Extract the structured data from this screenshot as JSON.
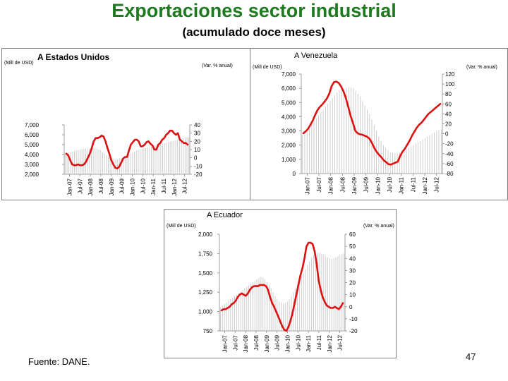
{
  "header": {
    "title": "Exportaciones sector industrial",
    "subtitle": "(acumulado doce meses)"
  },
  "footer": {
    "source": "Fuente: DANE.",
    "page_number": "47"
  },
  "colors": {
    "title": "#1e7a1e",
    "line": "#dd1111",
    "bars": "#c8c8c8",
    "axis": "#888888"
  },
  "chart_data": [
    {
      "id": "usa",
      "type": "line",
      "title": "A Estados Unidos",
      "left_unit": "(Mill de USD)",
      "right_unit": "(Var. % anual)",
      "x_ticks": [
        "Jan-07",
        "Jul-07",
        "Jan-08",
        "Jul-08",
        "Jan-09",
        "Jul-09",
        "Jan-10",
        "Jul-10",
        "Jan-11",
        "Jul-11",
        "Jan-12",
        "Jul-12"
      ],
      "left_axis": {
        "min": 2000,
        "max": 7000,
        "ticks": [
          {
            "v": 7000,
            "l": "7,000"
          },
          {
            "v": 6000,
            "l": "6,000"
          },
          {
            "v": 5000,
            "l": "5,000"
          },
          {
            "v": 4000,
            "l": "4,000"
          },
          {
            "v": 3000,
            "l": "3,000"
          },
          {
            "v": 2000,
            "l": "2,000"
          }
        ]
      },
      "right_axis": {
        "min": -20,
        "max": 40,
        "ticks": [
          {
            "v": 40,
            "l": "40"
          },
          {
            "v": 30,
            "l": "30"
          },
          {
            "v": 20,
            "l": "20"
          },
          {
            "v": 10,
            "l": "10"
          },
          {
            "v": 0,
            "l": "0"
          },
          {
            "v": -10,
            "l": "-10"
          },
          {
            "v": -20,
            "l": "-20"
          }
        ]
      },
      "series": [
        {
          "axis": "left",
          "kind": "bars",
          "values": [
            4100,
            4150,
            4200,
            4250,
            4300,
            4350,
            4400,
            4450,
            4500,
            4550,
            4580,
            4600,
            4600,
            4620,
            4640,
            4650,
            4650,
            4600,
            4500,
            4400,
            4250,
            4100,
            3950,
            3800,
            3700,
            3600,
            3550,
            3550,
            3550,
            3600,
            3650,
            3700,
            3800,
            3900,
            4000,
            4100,
            4200,
            4300,
            4400,
            4450,
            4500,
            4550,
            4600,
            4650,
            4700,
            4750,
            4800,
            4850,
            4900,
            4950,
            5000,
            5050,
            5100,
            5150,
            5200,
            5250,
            5300,
            5350,
            5400,
            5450,
            5500,
            5550,
            5600,
            5650,
            5700,
            5750,
            5750
          ]
        },
        {
          "axis": "right",
          "kind": "line",
          "values": [
            5,
            3,
            -3,
            -8,
            -9,
            -9,
            -8,
            -9,
            -9,
            -8,
            -5,
            0,
            5,
            12,
            20,
            24,
            24,
            25,
            27,
            26,
            20,
            12,
            5,
            -3,
            -8,
            -12,
            -13,
            -11,
            -6,
            -1,
            1,
            1,
            9,
            16,
            19,
            22,
            22,
            20,
            14,
            14,
            16,
            19,
            20,
            17,
            15,
            10,
            10,
            16,
            18,
            22,
            24,
            28,
            30,
            33,
            33,
            30,
            28,
            30,
            22,
            20,
            18,
            18,
            16
          ]
        }
      ]
    },
    {
      "id": "venezuela",
      "type": "line",
      "title": "A Venezuela",
      "left_unit": "(Mill de USD)",
      "right_unit": "(Var. % anual)",
      "x_ticks": [
        "Jan-07",
        "Jul-07",
        "Jan-08",
        "Jul-08",
        "Jan-09",
        "Jul-09",
        "Jan-10",
        "Jul-10",
        "Jan-11",
        "Jul-11",
        "Jan-12",
        "Jul-12"
      ],
      "left_axis": {
        "min": 0,
        "max": 7000,
        "ticks": [
          {
            "v": 7000,
            "l": "7,000"
          },
          {
            "v": 6000,
            "l": "6,000"
          },
          {
            "v": 5000,
            "l": "5,000"
          },
          {
            "v": 4000,
            "l": "4,000"
          },
          {
            "v": 3000,
            "l": "3,000"
          },
          {
            "v": 2000,
            "l": "2,000"
          },
          {
            "v": 1000,
            "l": "1,000"
          },
          {
            "v": 0,
            "l": "0"
          }
        ]
      },
      "right_axis": {
        "min": -80,
        "max": 120,
        "ticks": [
          {
            "v": 120,
            "l": "120"
          },
          {
            "v": 100,
            "l": "100"
          },
          {
            "v": 80,
            "l": "80"
          },
          {
            "v": 60,
            "l": "60"
          },
          {
            "v": 40,
            "l": "40"
          },
          {
            "v": 20,
            "l": "20"
          },
          {
            "v": 0,
            "l": "0"
          },
          {
            "v": -20,
            "l": "-20"
          },
          {
            "v": -40,
            "l": "-40"
          },
          {
            "v": -60,
            "l": "-60"
          },
          {
            "v": -80,
            "l": "-80"
          }
        ]
      },
      "series": [
        {
          "axis": "left",
          "kind": "bars",
          "values": [
            2700,
            2900,
            3100,
            3300,
            3500,
            3700,
            3900,
            4100,
            4300,
            4500,
            4700,
            4900,
            5100,
            5300,
            5500,
            5700,
            5850,
            5950,
            6000,
            6050,
            6100,
            6050,
            6000,
            5800,
            5600,
            5400,
            5100,
            4800,
            4500,
            4200,
            3800,
            3400,
            3000,
            2600,
            2300,
            2000,
            1800,
            1650,
            1500,
            1450,
            1420,
            1450,
            1500,
            1550,
            1600,
            1700,
            1800,
            1900,
            2000,
            2100,
            2200,
            2300,
            2400,
            2500,
            2600,
            2700,
            2800,
            2900,
            3000,
            3050,
            3100
          ]
        },
        {
          "axis": "right",
          "kind": "line",
          "values": [
            1,
            5,
            10,
            18,
            27,
            38,
            48,
            54,
            59,
            65,
            71,
            81,
            96,
            104,
            105,
            102,
            95,
            85,
            72,
            54,
            36,
            22,
            6,
            1,
            -1,
            -2,
            -4,
            -6,
            -10,
            -18,
            -28,
            -36,
            -42,
            -47,
            -53,
            -57,
            -61,
            -62,
            -60,
            -58,
            -56,
            -45,
            -36,
            -30,
            -22,
            -14,
            -4,
            4,
            12,
            18,
            22,
            28,
            34,
            40,
            44,
            48,
            52,
            56,
            60
          ]
        }
      ]
    },
    {
      "id": "ecuador",
      "type": "line",
      "title": "A Ecuador",
      "left_unit": "(Mill de USD)",
      "right_unit": "(Var. % anual)",
      "x_ticks": [
        "Jan-07",
        "Jul-07",
        "Jan-08",
        "Jul-08",
        "Jan-09",
        "Jul-09",
        "Jan-10",
        "Jul-10",
        "Jan-11",
        "Jul-11",
        "Jan-12",
        "Jul-12"
      ],
      "left_axis": {
        "min": 750,
        "max": 2000,
        "ticks": [
          {
            "v": 2000,
            "l": "2,000"
          },
          {
            "v": 1750,
            "l": "1,750"
          },
          {
            "v": 1500,
            "l": "1,500"
          },
          {
            "v": 1250,
            "l": "1,250"
          },
          {
            "v": 1000,
            "l": "1,000"
          },
          {
            "v": 750,
            "l": "750"
          }
        ]
      },
      "right_axis": {
        "min": -20,
        "max": 60,
        "ticks": [
          {
            "v": 60,
            "l": "60"
          },
          {
            "v": 50,
            "l": "50"
          },
          {
            "v": 40,
            "l": "40"
          },
          {
            "v": 30,
            "l": "30"
          },
          {
            "v": 20,
            "l": "20"
          },
          {
            "v": 10,
            "l": "10"
          },
          {
            "v": 0,
            "l": "0"
          },
          {
            "v": -10,
            "l": "-10"
          },
          {
            "v": -20,
            "l": "-20"
          }
        ]
      },
      "series": [
        {
          "axis": "left",
          "kind": "bars",
          "values": [
            1050,
            1080,
            1100,
            1120,
            1140,
            1160,
            1180,
            1200,
            1220,
            1240,
            1260,
            1280,
            1300,
            1320,
            1340,
            1360,
            1380,
            1400,
            1420,
            1440,
            1450,
            1440,
            1420,
            1380,
            1340,
            1300,
            1250,
            1200,
            1160,
            1130,
            1110,
            1100,
            1110,
            1130,
            1160,
            1200,
            1250,
            1300,
            1350,
            1400,
            1450,
            1500,
            1550,
            1600,
            1650,
            1700,
            1730,
            1750,
            1760,
            1760,
            1750,
            1740,
            1720,
            1700,
            1690,
            1680,
            1690,
            1700,
            1720,
            1730,
            1740,
            1750
          ]
        },
        {
          "axis": "right",
          "kind": "line",
          "values": [
            -3,
            -2,
            -2,
            -1,
            0,
            2,
            3,
            5,
            8,
            10,
            11,
            10,
            9,
            11,
            14,
            16,
            17,
            17,
            17,
            18,
            18,
            18,
            17,
            14,
            8,
            3,
            0,
            -4,
            -8,
            -12,
            -16,
            -19,
            -20,
            -17,
            -12,
            -6,
            2,
            10,
            18,
            26,
            32,
            40,
            50,
            53,
            53,
            52,
            46,
            36,
            22,
            14,
            8,
            4,
            1,
            0,
            -1,
            -1,
            0,
            -1,
            -2,
            0,
            3
          ]
        }
      ]
    }
  ]
}
